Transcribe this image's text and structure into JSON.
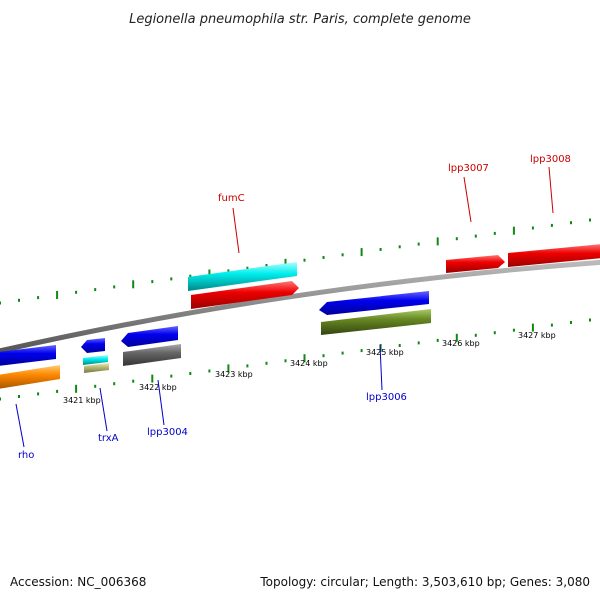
{
  "header": {
    "title": "Legionella pneumophila str. Paris, complete genome"
  },
  "footer": {
    "accession": "Accession: NC_006368",
    "summary": "Topology: circular; Length: 3,503,610 bp; Genes: 3,080"
  },
  "colors": {
    "forward_label": "#cc0000",
    "reverse_label": "#0000cc",
    "backbone": "#888888",
    "ticks": "#118811"
  },
  "ticks": [
    {
      "label": "3421 kbp"
    },
    {
      "label": "3422 kbp"
    },
    {
      "label": "3423 kbp"
    },
    {
      "label": "3424 kbp"
    },
    {
      "label": "3425 kbp"
    },
    {
      "label": "3426 kbp"
    },
    {
      "label": "3427 kbp"
    }
  ],
  "genes": [
    {
      "name": "rho",
      "strand": "reverse",
      "color": "#0000ee"
    },
    {
      "name": "trxA",
      "strand": "reverse",
      "color": "#0000ee"
    },
    {
      "name": "lpp3004",
      "strand": "reverse",
      "color": "#0000ee"
    },
    {
      "name": "fumC",
      "strand": "forward",
      "color": "#ee0000"
    },
    {
      "name": "lpp3006",
      "strand": "reverse",
      "color": "#0000ee"
    },
    {
      "name": "lpp3007",
      "strand": "forward",
      "color": "#ee0000"
    },
    {
      "name": "lpp3008",
      "strand": "forward",
      "color": "#ee0000"
    }
  ],
  "category_bars": [
    {
      "color": "#ff8800"
    },
    {
      "color": "#00dddd"
    },
    {
      "color": "#bbbb77"
    },
    {
      "color": "#666666"
    },
    {
      "color": "#668822"
    }
  ]
}
